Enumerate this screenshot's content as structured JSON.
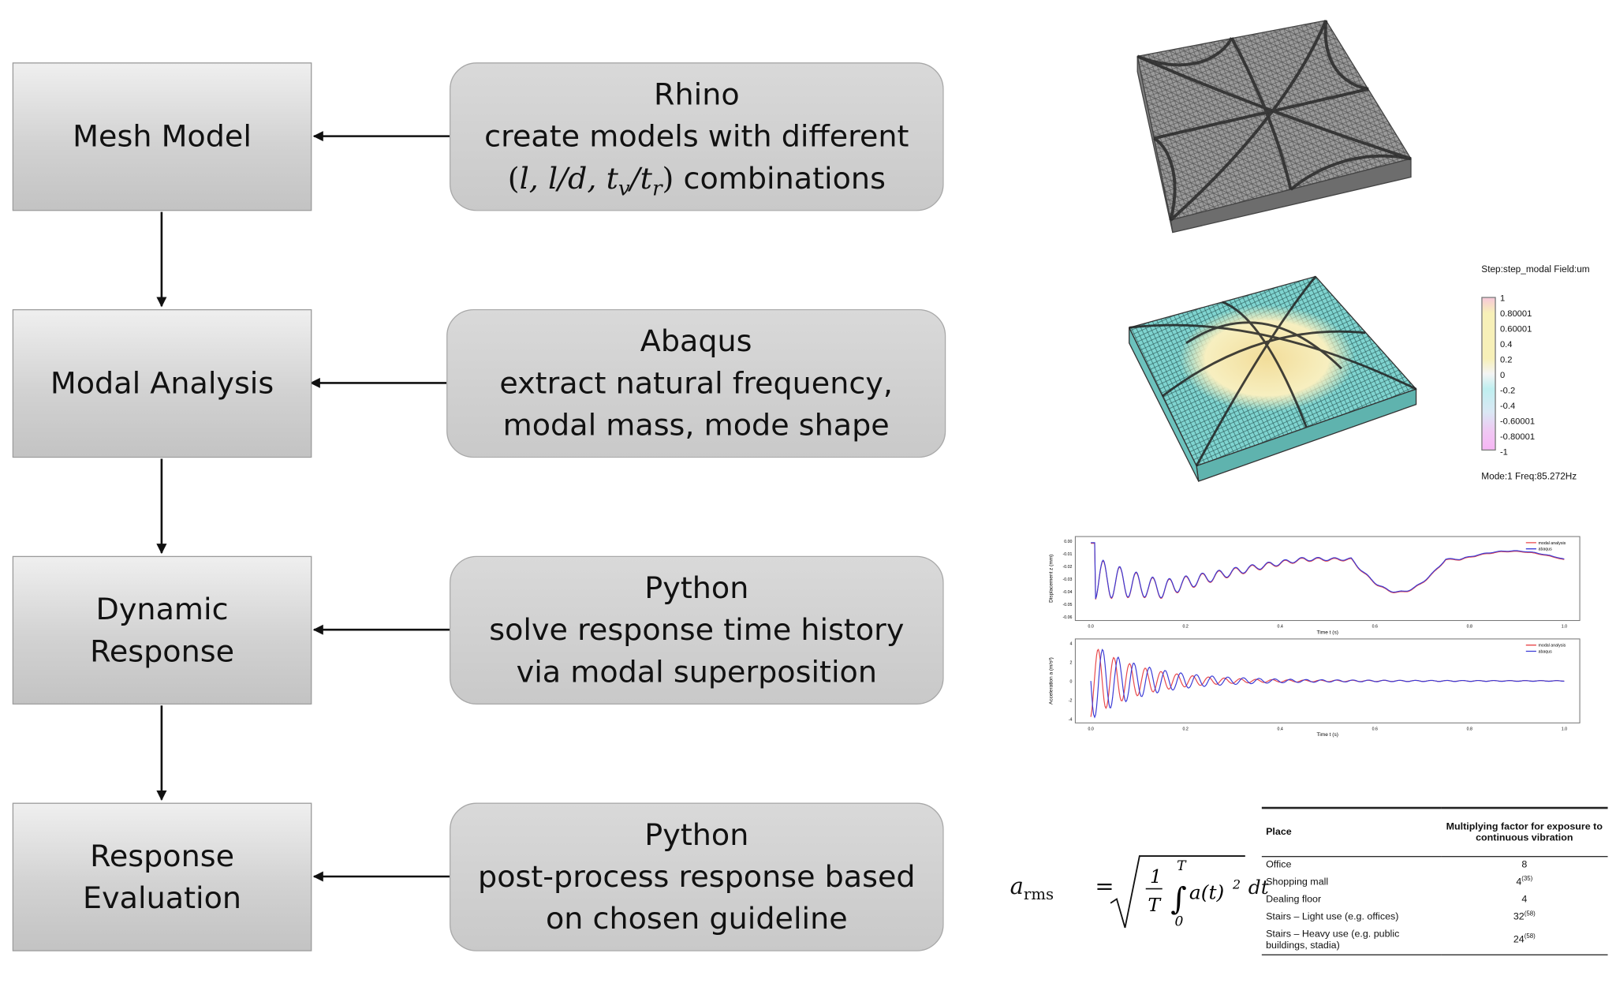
{
  "steps": [
    {
      "label": "Mesh Model"
    },
    {
      "label": "Modal Analysis"
    },
    {
      "label": "Dynamic Response"
    },
    {
      "label": "Response Evaluation"
    }
  ],
  "tools": [
    {
      "title": "Rhino",
      "line1": "create models with different",
      "line2_suffix": "combinations"
    },
    {
      "title": "Abaqus",
      "line1": "extract natural frequency,",
      "line2": "modal mass, mode shape"
    },
    {
      "title": "Python",
      "line1": "solve response time history",
      "line2": "via modal superposition"
    },
    {
      "title": "Python",
      "line1": "post-process response based",
      "line2": "on chosen guideline"
    }
  ],
  "modal_plot": {
    "header": "Step:step_modal   Field:um",
    "footer": "Mode:1    Freq:85.272Hz",
    "legend_values": [
      "1",
      "0.80001",
      "0.60001",
      "0.4",
      "0.2",
      "0",
      "-0.2",
      "-0.4",
      "-0.60001",
      "-0.80001",
      "-1"
    ],
    "colors": {
      "yellow": "#f5e9a0",
      "cyan": "#7fd4d0",
      "mesh": "#3a3a3a"
    }
  },
  "response_plots": [
    {
      "ylabel": "Displacement z (mm)",
      "xlabel": "Time t (s)",
      "yticks": [
        "0.00",
        "-0.01",
        "-0.02",
        "-0.03",
        "-0.04",
        "-0.05",
        "-0.06"
      ],
      "xticks": [
        "0.0",
        "0.2",
        "0.4",
        "0.6",
        "0.8",
        "1.0"
      ],
      "legend": [
        "modal analysis",
        "abaqus"
      ]
    },
    {
      "ylabel": "Acceleration a (m/s²)",
      "xlabel": "Time t (s)",
      "yticks": [
        "4",
        "2",
        "0",
        "-2",
        "-4"
      ],
      "xticks": [
        "0.0",
        "0.2",
        "0.4",
        "0.6",
        "0.8",
        "1.0"
      ],
      "legend": [
        "modal analysis",
        "abaqus"
      ]
    }
  ],
  "formula": {
    "lhs": "a",
    "lhs_sub": "rms",
    "frac_num": "1",
    "frac_den": "T",
    "upper": "T",
    "lower": "0",
    "integrand": "a(t)",
    "power": "2",
    "dt": "dt"
  },
  "table": {
    "headers": [
      "Place",
      "Multiplying factor for exposure to continuous vibration"
    ],
    "rows": [
      {
        "place": "Office",
        "factor": "8",
        "ref": ""
      },
      {
        "place": "Shopping mall",
        "factor": "4",
        "ref": "(35)"
      },
      {
        "place": "Dealing floor",
        "factor": "4",
        "ref": ""
      },
      {
        "place": "Stairs – Light use (e.g. offices)",
        "factor": "32",
        "ref": "(58)"
      },
      {
        "place": "Stairs – Heavy use (e.g. public buildings, stadia)",
        "factor": "24",
        "ref": "(58)"
      }
    ]
  }
}
